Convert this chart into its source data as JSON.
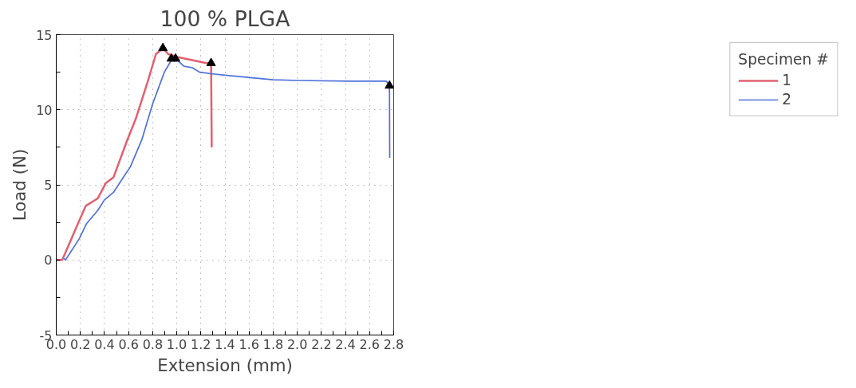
{
  "chart_data": {
    "type": "line",
    "title": "100 % PLGA",
    "xlabel": "Extension (mm)",
    "ylabel": "Load (N)",
    "legend_title": "Specimen #",
    "xlim": [
      0.0,
      2.8
    ],
    "ylim": [
      -5,
      15
    ],
    "xticks": [
      {
        "value": 0.0,
        "label": "0.0"
      },
      {
        "value": 0.1,
        "label": null
      },
      {
        "value": 0.2,
        "label": "0.2"
      },
      {
        "value": 0.3,
        "label": null
      },
      {
        "value": 0.4,
        "label": "0.4"
      },
      {
        "value": 0.5,
        "label": null
      },
      {
        "value": 0.6,
        "label": "0.6"
      },
      {
        "value": 0.7,
        "label": null
      },
      {
        "value": 0.8,
        "label": "0.8"
      },
      {
        "value": 0.9,
        "label": null
      },
      {
        "value": 1.0,
        "label": "1.0"
      },
      {
        "value": 1.1,
        "label": null
      },
      {
        "value": 1.2,
        "label": "1.2"
      },
      {
        "value": 1.3,
        "label": null
      },
      {
        "value": 1.4,
        "label": "1.4"
      },
      {
        "value": 1.5,
        "label": null
      },
      {
        "value": 1.6,
        "label": "1.6"
      },
      {
        "value": 1.7,
        "label": null
      },
      {
        "value": 1.8,
        "label": "1.8"
      },
      {
        "value": 1.9,
        "label": null
      },
      {
        "value": 2.0,
        "label": "2.0"
      },
      {
        "value": 2.1,
        "label": null
      },
      {
        "value": 2.2,
        "label": "2.2"
      },
      {
        "value": 2.3,
        "label": null
      },
      {
        "value": 2.4,
        "label": "2.4"
      },
      {
        "value": 2.5,
        "label": null
      },
      {
        "value": 2.6,
        "label": "2.6"
      },
      {
        "value": 2.7,
        "label": null
      },
      {
        "value": 2.8,
        "label": "2.8"
      }
    ],
    "yticks": [
      -5,
      {
        "value": -2.5,
        "label": null
      },
      0,
      {
        "value": 2.5,
        "label": null
      },
      5,
      {
        "value": 7.5,
        "label": null
      },
      10,
      {
        "value": 12.5,
        "label": null
      },
      15
    ],
    "grid": true,
    "legend": "right",
    "marker": "none",
    "line_style": "solid",
    "series": [
      {
        "name": "1",
        "color": "#e06070",
        "x": [
          0.0,
          0.05,
          0.19,
          0.245,
          0.345,
          0.41,
          0.475,
          0.59,
          0.66,
          0.756,
          0.827,
          0.885,
          0.93,
          1.01,
          1.13,
          1.25,
          1.285,
          1.29
        ],
        "values": [
          0,
          0,
          2.6,
          3.6,
          4.1,
          5.1,
          5.5,
          8.0,
          9.4,
          11.8,
          13.7,
          14.1,
          13.7,
          13.5,
          13.3,
          13.1,
          13.1,
          7.5
        ]
      },
      {
        "name": "2",
        "color": "#5070d8",
        "x": [
          0.063,
          0.077,
          0.19,
          0.25,
          0.345,
          0.4,
          0.475,
          0.557,
          0.615,
          0.71,
          0.8,
          0.897,
          0.955,
          0.99,
          1.06,
          1.13,
          1.19,
          1.285,
          1.4,
          1.8,
          2.01,
          2.435,
          2.74,
          2.765,
          2.767
        ],
        "values": [
          0.1,
          0,
          1.4,
          2.4,
          3.3,
          4.0,
          4.5,
          5.5,
          6.2,
          8.0,
          10.4,
          12.5,
          13.3,
          13.4,
          12.9,
          12.8,
          12.5,
          12.4,
          12.3,
          12.0,
          11.95,
          11.9,
          11.9,
          11.6,
          6.8
        ]
      },
      {
        "type": "scatter",
        "marker": "triangle",
        "color": "#000000",
        "x": [
          0.885,
          1.285,
          0.955,
          0.99,
          2.765
        ],
        "values": [
          14.1,
          13.1,
          13.4,
          13.4,
          11.6
        ]
      }
    ]
  }
}
